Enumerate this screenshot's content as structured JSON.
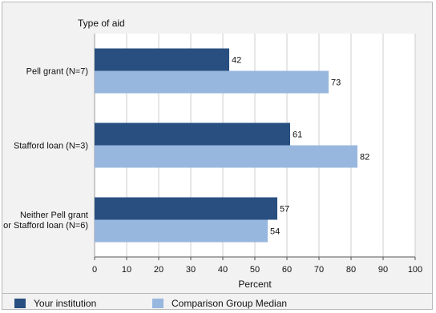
{
  "chart_data": {
    "type": "bar",
    "orientation": "horizontal",
    "y_title": "Type of aid",
    "xlabel": "Percent",
    "xlim": [
      0,
      100
    ],
    "x_ticks": [
      "0",
      "10",
      "20",
      "30",
      "40",
      "50",
      "60",
      "70",
      "80",
      "90",
      "100"
    ],
    "categories": [
      [
        "Pell grant  (N=7)"
      ],
      [
        "Stafford loan (N=3)"
      ],
      [
        "Neither Pell grant",
        "or Stafford loan (N=6)"
      ]
    ],
    "series": [
      {
        "name": "Your institution",
        "color": "#284f80",
        "values": [
          42,
          61,
          57
        ]
      },
      {
        "name": "Comparison Group Median",
        "color": "#98b7de",
        "values": [
          73,
          82,
          54
        ]
      }
    ],
    "grid": true,
    "legend_position": "bottom"
  }
}
